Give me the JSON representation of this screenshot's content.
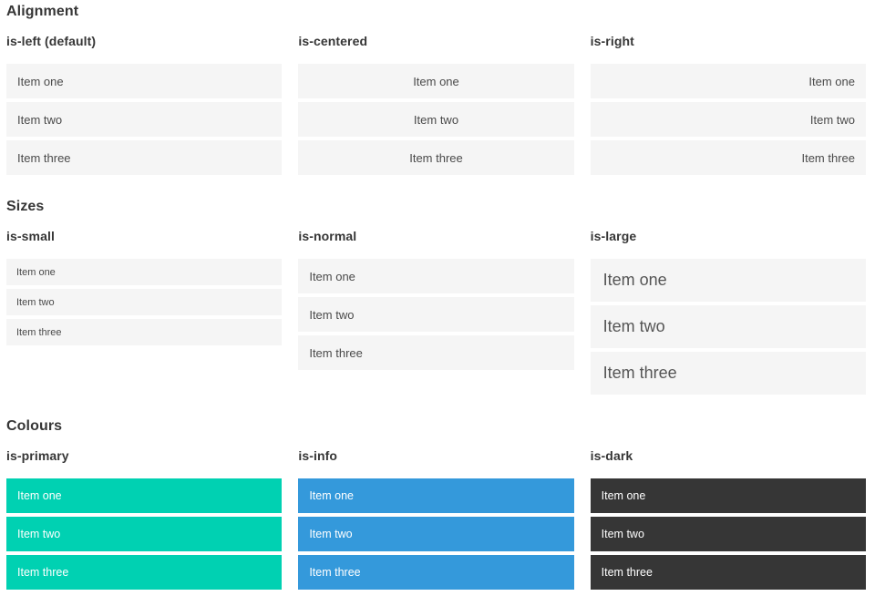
{
  "colors": {
    "primary": "#00d1b2",
    "info": "#3499db",
    "dark": "#363636",
    "item_background": "#f5f5f5",
    "item_text": "#4a4a4a",
    "heading_text": "#363636",
    "page_background": "#ffffff"
  },
  "sections": [
    {
      "title": "Alignment",
      "groups": [
        {
          "label": "is-left (default)",
          "alignment": "left",
          "items": [
            "Item one",
            "Item two",
            "Item three"
          ]
        },
        {
          "label": "is-centered",
          "alignment": "center",
          "items": [
            "Item one",
            "Item two",
            "Item three"
          ]
        },
        {
          "label": "is-right",
          "alignment": "right",
          "items": [
            "Item one",
            "Item two",
            "Item three"
          ]
        }
      ]
    },
    {
      "title": "Sizes",
      "groups": [
        {
          "label": "is-small",
          "size": "small",
          "items": [
            "Item one",
            "Item two",
            "Item three"
          ]
        },
        {
          "label": "is-normal",
          "size": "normal",
          "items": [
            "Item one",
            "Item two",
            "Item three"
          ]
        },
        {
          "label": "is-large",
          "size": "large",
          "items": [
            "Item one",
            "Item two",
            "Item three"
          ]
        }
      ]
    },
    {
      "title": "Colours",
      "groups": [
        {
          "label": "is-primary",
          "color": "primary",
          "items": [
            "Item one",
            "Item two",
            "Item three"
          ]
        },
        {
          "label": "is-info",
          "color": "info",
          "items": [
            "Item one",
            "Item two",
            "Item three"
          ]
        },
        {
          "label": "is-dark",
          "color": "dark",
          "items": [
            "Item one",
            "Item two",
            "Item three"
          ]
        }
      ]
    }
  ]
}
